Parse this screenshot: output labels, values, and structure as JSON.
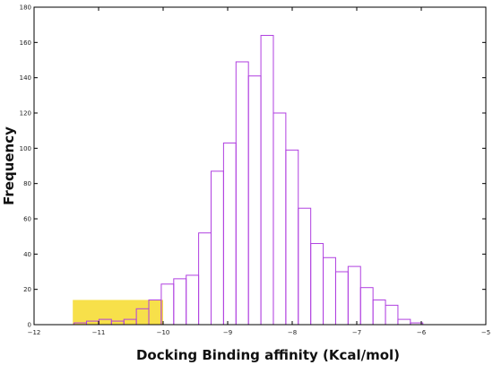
{
  "chart_data": {
    "type": "bar",
    "title": "",
    "xlabel": "Docking Binding affinity (Kcal/mol)",
    "ylabel": "Frequency",
    "xlim": [
      -12,
      -5
    ],
    "ylim": [
      0,
      180
    ],
    "xticks": [
      -12,
      -11,
      -10,
      -9,
      -8,
      -7,
      -6,
      -5
    ],
    "xtick_labels": [
      "−12",
      "−11",
      "−10",
      "−9",
      "−8",
      "−7",
      "−6",
      "−5"
    ],
    "yticks": [
      0,
      20,
      40,
      60,
      80,
      100,
      120,
      140,
      160,
      180
    ],
    "grid": false,
    "bar_color": "#b040e0",
    "bar_fill": "#ffffff",
    "bin_width": 0.193,
    "bins": [
      {
        "x0": -11.38,
        "count": 1
      },
      {
        "x0": -11.187,
        "count": 2
      },
      {
        "x0": -10.994,
        "count": 3
      },
      {
        "x0": -10.801,
        "count": 2
      },
      {
        "x0": -10.608,
        "count": 3
      },
      {
        "x0": -10.415,
        "count": 9
      },
      {
        "x0": -10.222,
        "count": 14
      },
      {
        "x0": -10.029,
        "count": 23
      },
      {
        "x0": -9.836,
        "count": 26
      },
      {
        "x0": -9.643,
        "count": 28
      },
      {
        "x0": -9.45,
        "count": 52
      },
      {
        "x0": -9.257,
        "count": 87
      },
      {
        "x0": -9.064,
        "count": 103
      },
      {
        "x0": -8.871,
        "count": 149
      },
      {
        "x0": -8.678,
        "count": 141
      },
      {
        "x0": -8.485,
        "count": 164
      },
      {
        "x0": -8.292,
        "count": 120
      },
      {
        "x0": -8.099,
        "count": 99
      },
      {
        "x0": -7.906,
        "count": 66
      },
      {
        "x0": -7.713,
        "count": 46
      },
      {
        "x0": -7.52,
        "count": 38
      },
      {
        "x0": -7.327,
        "count": 30
      },
      {
        "x0": -7.134,
        "count": 33
      },
      {
        "x0": -6.941,
        "count": 21
      },
      {
        "x0": -6.748,
        "count": 14
      },
      {
        "x0": -6.555,
        "count": 11
      },
      {
        "x0": -6.362,
        "count": 3
      },
      {
        "x0": -6.169,
        "count": 1
      }
    ],
    "highlight_region": {
      "x_start": -11.4,
      "x_end": -10.0,
      "y_height": 14,
      "color": "#f7e04a"
    }
  }
}
